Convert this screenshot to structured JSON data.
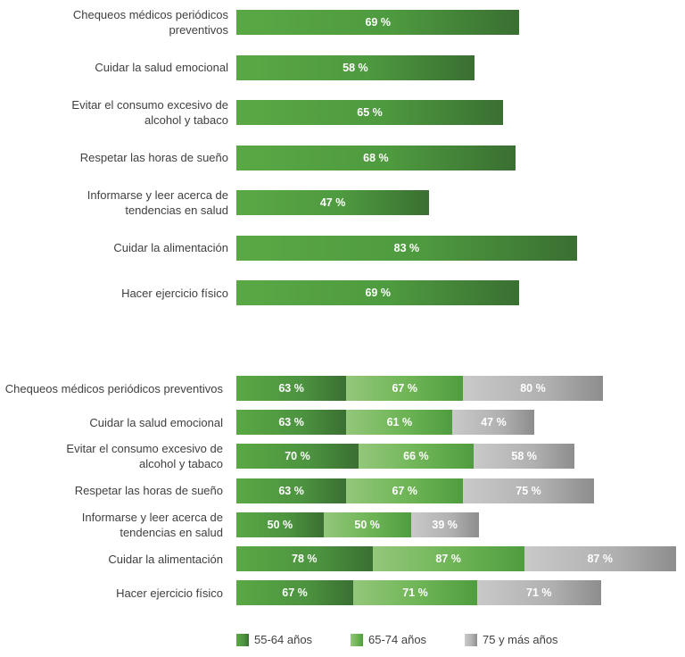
{
  "chart_data": [
    {
      "type": "bar",
      "orientation": "horizontal",
      "categories": [
        "Chequeos médicos periódicos\npreventivos",
        "Cuidar la salud emocional",
        "Evitar el consumo excesivo de\nalcohol y tabaco",
        "Respetar las horas de sueño",
        "Informarse y leer acerca de\ntendencias en salud",
        "Cuidar la alimentación",
        "Hacer ejercicio físico"
      ],
      "values": [
        69,
        58,
        65,
        68,
        47,
        83,
        69
      ],
      "value_labels": [
        "69 %",
        "58 %",
        "65 %",
        "68 %",
        "47 %",
        "83 %",
        "69 %"
      ],
      "xlim": [
        0,
        100
      ],
      "grid": false
    },
    {
      "type": "bar",
      "orientation": "horizontal",
      "stacked": true,
      "categories": [
        "Chequeos médicos periódicos preventivos",
        "Cuidar la salud emocional",
        "Evitar el consumo excesivo de\nalcohol y tabaco",
        "Respetar las horas de sueño",
        "Informarse y leer acerca de\ntendencias en salud",
        "Cuidar la alimentación",
        "Hacer ejercicio físico"
      ],
      "series": [
        {
          "name": "55-64 años",
          "color": "#4c933f",
          "values": [
            63,
            63,
            70,
            63,
            50,
            78,
            67
          ],
          "value_labels": [
            "63 %",
            "63 %",
            "70 %",
            "63 %",
            "50 %",
            "78 %",
            "67 %"
          ]
        },
        {
          "name": "65-74 años",
          "color": "#6db455",
          "values": [
            67,
            61,
            66,
            67,
            50,
            87,
            71
          ],
          "value_labels": [
            "67 %",
            "61 %",
            "66 %",
            "67 %",
            "50 %",
            "87 %",
            "71 %"
          ]
        },
        {
          "name": "75 y más años",
          "color": "#b0b0b0",
          "values": [
            80,
            47,
            58,
            75,
            39,
            87,
            71
          ],
          "value_labels": [
            "80 %",
            "47 %",
            "58 %",
            "75 %",
            "39 %",
            "87 %",
            "71 %"
          ]
        }
      ],
      "legend": {
        "position": "bottom",
        "entries": [
          "55-64 años",
          "65-74 años",
          "75 y más años"
        ]
      },
      "grid": false
    }
  ]
}
